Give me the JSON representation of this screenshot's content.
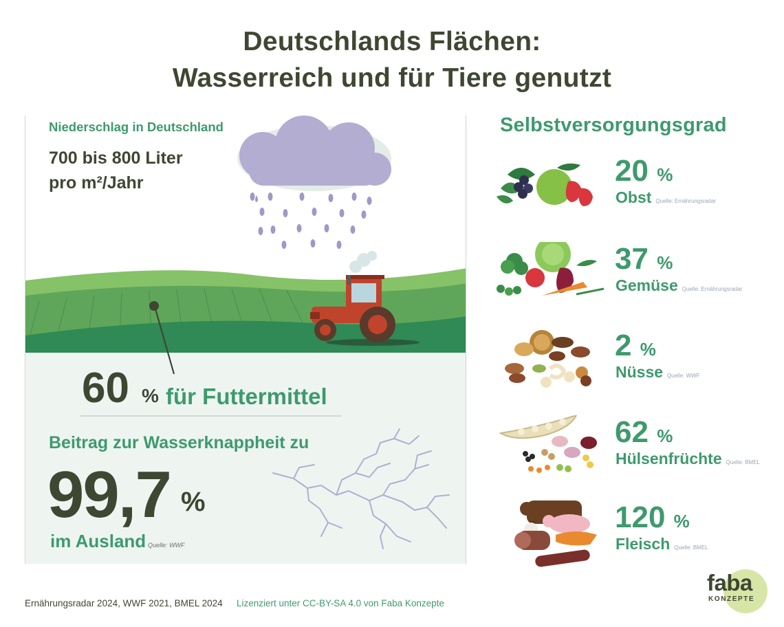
{
  "title": {
    "line1": "Deutschlands Flächen:",
    "line2": "Wasserreich und für Tiere genutzt"
  },
  "left": {
    "precip_label": "Niederschlag in Deutschland",
    "precip_line1": "700 bis 800 Liter",
    "precip_line2": "pro m²/Jahr",
    "feed_value": "60",
    "feed_pct": "%",
    "feed_label": "für Futtermittel",
    "water_label": "Beitrag zur Wasserknappheit zu",
    "water_value": "99,7",
    "water_pct": "%",
    "abroad_label": "im Ausland",
    "source": "Quelle: WWF"
  },
  "right": {
    "heading": "Selbstversorgungsgrad",
    "items": [
      {
        "value": "20",
        "pct": "%",
        "name": "Obst",
        "source": "Quelle: Ernährungsradar",
        "icon": "fruit-icon"
      },
      {
        "value": "37",
        "pct": "%",
        "name": "Gemüse",
        "source": "Quelle: Ernährungsradar",
        "icon": "vegetables-icon"
      },
      {
        "value": "2",
        "pct": "%",
        "name": "Nüsse",
        "source": "Quelle: WWF",
        "icon": "nuts-icon"
      },
      {
        "value": "62",
        "pct": "%",
        "name": "Hülsenfrüchte",
        "source": "Quelle: BMEL",
        "icon": "legumes-icon"
      },
      {
        "value": "120",
        "pct": "%",
        "name": "Fleisch",
        "source": "Quelle: BMEL",
        "icon": "meat-icon"
      }
    ]
  },
  "footer": {
    "sources": "Ernährungsradar 2024, WWF 2021, BMEL 2024",
    "license": "Lizenziert unter CC-BY-SA 4.0 von Faba Konzepte"
  },
  "logo": {
    "word": "faba",
    "sub": "KONZEPTE"
  },
  "colors": {
    "dark": "#3f4632",
    "green": "#3e9a6d",
    "field_light": "#7cba5e",
    "field_dark": "#2f8a55",
    "cloud": "#b3add2",
    "tractor": "#c0432c",
    "panel_bg": "#eef5f1"
  }
}
